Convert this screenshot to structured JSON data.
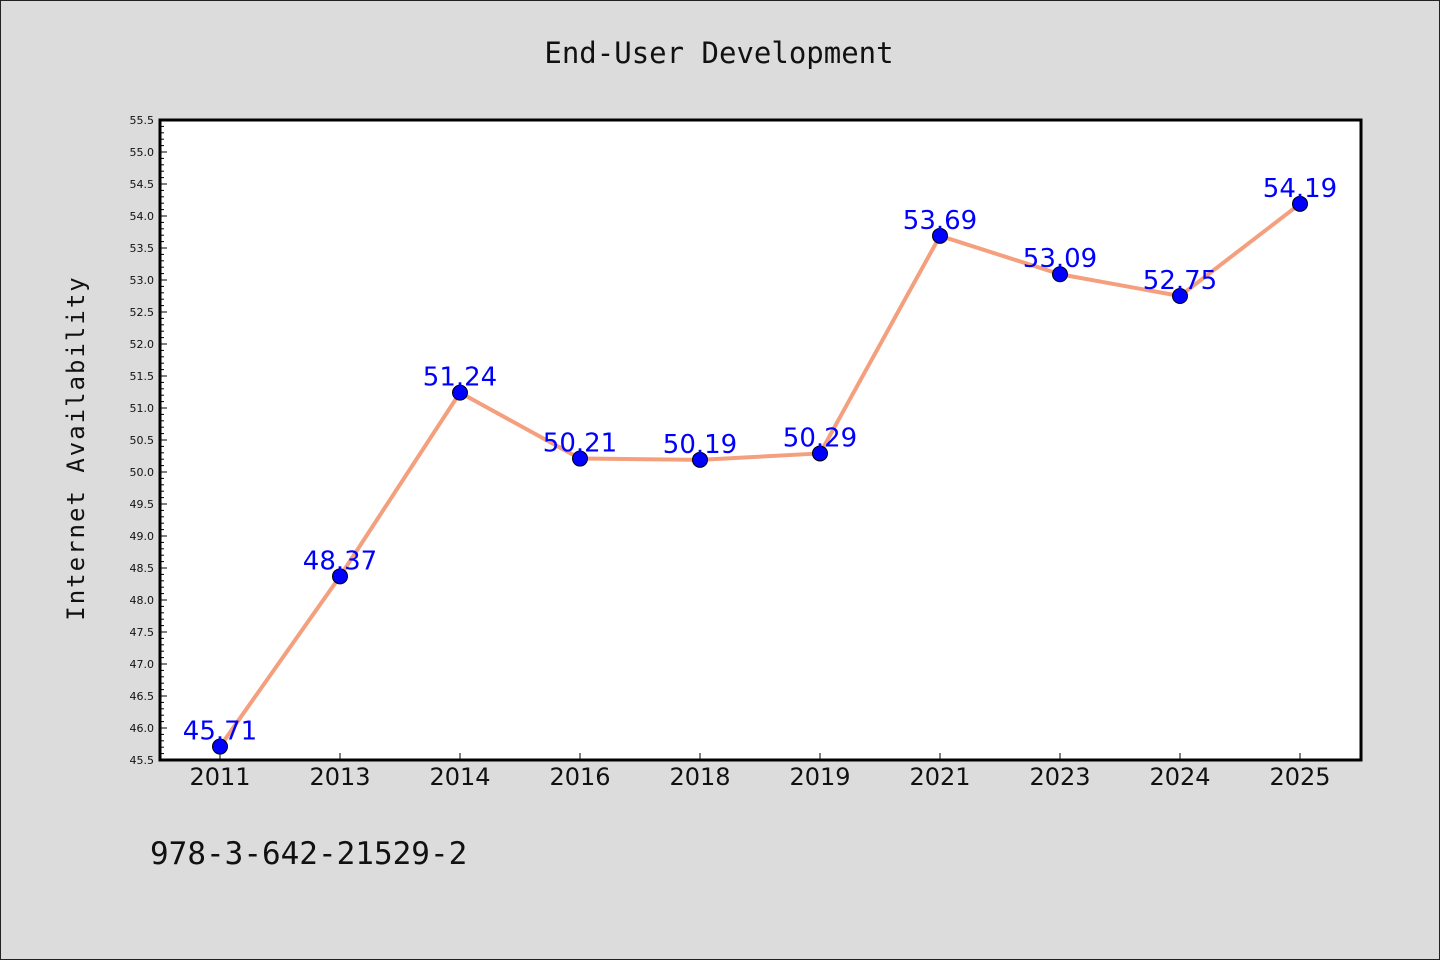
{
  "chart_data": {
    "type": "line",
    "title": "End-User Development",
    "xlabel": "",
    "ylabel": "Internet Availability",
    "categories": [
      "2011",
      "2013",
      "2014",
      "2016",
      "2018",
      "2019",
      "2021",
      "2023",
      "2024",
      "2025"
    ],
    "values": [
      45.71,
      48.37,
      51.24,
      50.21,
      50.19,
      50.29,
      53.69,
      53.09,
      52.75,
      54.19
    ],
    "data_labels": [
      "45.71",
      "48.37",
      "51.24",
      "50.21",
      "50.19",
      "50.29",
      "53.69",
      "53.09",
      "52.75",
      "54.19"
    ],
    "ylim": [
      45.5,
      55.5
    ],
    "yticks": [
      "45.5",
      "46.0",
      "46.5",
      "47.0",
      "47.5",
      "48.0",
      "48.5",
      "49.0",
      "49.5",
      "50.0",
      "50.5",
      "51.0",
      "51.5",
      "52.0",
      "52.5",
      "53.0",
      "53.5",
      "54.0",
      "54.5",
      "55.0",
      "55.5"
    ],
    "grid": false,
    "legend": "none",
    "line_color": "#f4a07e",
    "marker_color": "#0000ff",
    "label_color": "#0000ff",
    "background_color": "#dcdcdc",
    "plot_background_color": "#ffffff"
  },
  "footer": {
    "isbn": "978-3-642-21529-2"
  }
}
